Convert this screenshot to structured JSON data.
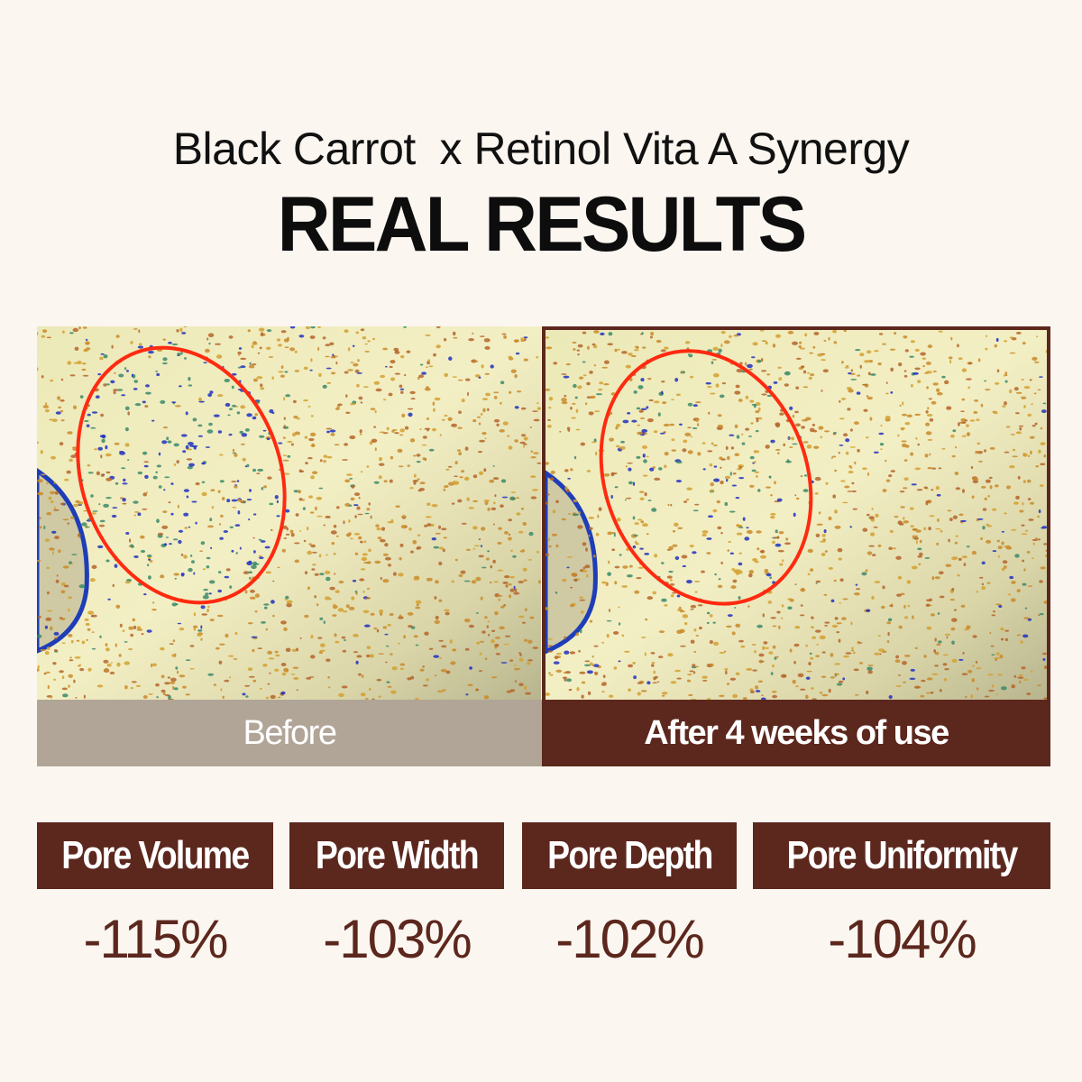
{
  "header": {
    "subtitle": "Black Carrot  x Retinol Vita A Synergy",
    "title": "REAL RESULTS"
  },
  "comparison": {
    "before_label": "Before",
    "after_label": "After 4 weeks of use"
  },
  "metrics": [
    {
      "label": "Pore Volume",
      "value": "-115%"
    },
    {
      "label": "Pore Width",
      "value": "-103%"
    },
    {
      "label": "Pore Depth",
      "value": "-102%"
    },
    {
      "label": "Pore Uniformity",
      "value": "-104%"
    }
  ],
  "colors": {
    "background": "#fbf6f0",
    "brand_brown": "#5c271d",
    "before_gray": "#b1a598",
    "highlight_circle": "#ff2a10"
  }
}
